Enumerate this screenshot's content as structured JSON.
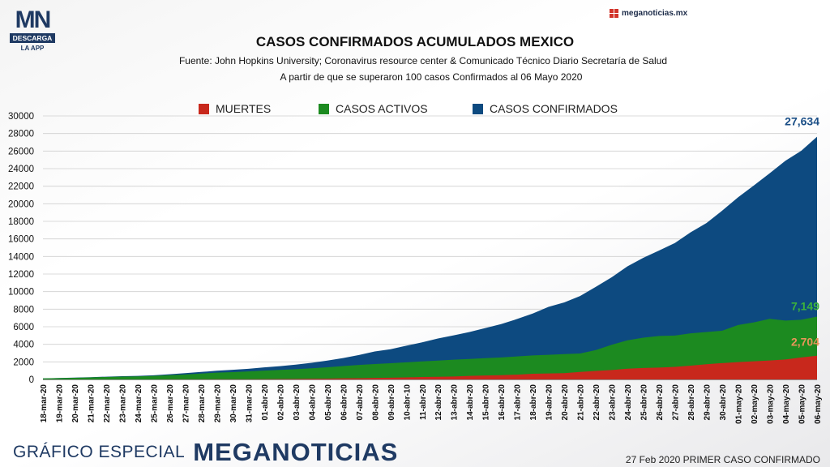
{
  "logo": {
    "mark": "MN",
    "bar": "DESCARGA",
    "sub": "LA APP"
  },
  "brand_top": "meganoticias.mx",
  "footer": {
    "special": "GRÁFICO ESPECIAL",
    "brand_a": "MEGA",
    "brand_b": "NOTICIAS",
    "note": "27 Feb 2020 PRIMER CASO CONFIRMADO"
  },
  "colors": {
    "muertes": "#c8281c",
    "activos": "#1c8a20",
    "confirmados": "#0d4a80"
  },
  "chart_data": {
    "type": "area",
    "title": "CASOS CONFIRMADOS ACUMULADOS MEXICO",
    "subtitle": "Fuente: John Hopkins University; Coronavirus resource center & Comunicado Técnico Diario Secretaría de Salud",
    "subtitle2": "A partir de que se superaron 100 casos Confirmados al 06 Mayo 2020",
    "xlabel": "",
    "ylabel": "",
    "ylim": [
      0,
      30000
    ],
    "yticks": [
      "0",
      "2000",
      "4000",
      "6000",
      "8000",
      "10000",
      "12000",
      "14000",
      "16000",
      "18000",
      "20000",
      "22000",
      "24000",
      "26000",
      "28000",
      "30000"
    ],
    "grid": true,
    "legend_position": "top",
    "categories": [
      "18-mar-20",
      "19-mar-20",
      "20-mar-20",
      "21-mar-20",
      "22-mar-20",
      "23-mar-20",
      "24-mar-20",
      "25-mar-20",
      "26-mar-20",
      "27-mar-20",
      "28-mar-20",
      "29-mar-20",
      "30-mar-20",
      "31-mar-20",
      "01-abr-20",
      "02-abr-20",
      "03-abr-20",
      "04-abr-20",
      "05-abr-20",
      "06-abr-20",
      "07-abr-20",
      "08-abr-20",
      "09-abr-20",
      "10-abr-10",
      "11-abr-20",
      "12-abr-20",
      "13-abr-20",
      "14-abr-20",
      "15-abr-20",
      "16-abr-20",
      "17-abr-20",
      "18-abr-20",
      "19-abr-20",
      "20-abr-20",
      "21-abr-20",
      "22-abr-20",
      "23-abr-20",
      "24-abr-20",
      "25-abr-20",
      "26-abr-20",
      "27-abr-20",
      "28-abr-20",
      "29-abr-20",
      "30-abr-20",
      "01-may-20",
      "02-may-20",
      "03-may-20",
      "04-may-20",
      "05-may-20",
      "06-may-20"
    ],
    "series": [
      {
        "name": "CASOS CONFIRMADOS",
        "values": [
          118,
          164,
          203,
          251,
          316,
          367,
          405,
          475,
          585,
          717,
          848,
          993,
          1094,
          1215,
          1378,
          1510,
          1688,
          1890,
          2143,
          2439,
          2785,
          3181,
          3441,
          3844,
          4219,
          4661,
          5014,
          5399,
          5847,
          6297,
          6875,
          7497,
          8261,
          8772,
          9501,
          10544,
          11633,
          12872,
          13842,
          14677,
          15529,
          16752,
          17799,
          19224,
          20739,
          22088,
          23471,
          24905,
          26025,
          27634
        ],
        "label": "27,634"
      },
      {
        "name": "CASOS ACTIVOS",
        "values": [
          110,
          150,
          185,
          225,
          280,
          320,
          350,
          400,
          480,
          570,
          670,
          770,
          830,
          910,
          1000,
          1080,
          1170,
          1270,
          1390,
          1520,
          1650,
          1750,
          1850,
          1950,
          2050,
          2150,
          2250,
          2330,
          2420,
          2500,
          2620,
          2730,
          2800,
          2880,
          2950,
          3350,
          3950,
          4450,
          4750,
          4950,
          5000,
          5250,
          5400,
          5550,
          6200,
          6500,
          6900,
          6700,
          6800,
          7149
        ],
        "label": "7,149"
      },
      {
        "name": "MUERTES",
        "values": [
          0,
          0,
          2,
          2,
          2,
          4,
          5,
          6,
          8,
          12,
          16,
          20,
          28,
          29,
          37,
          50,
          60,
          79,
          94,
          125,
          141,
          174,
          194,
          233,
          273,
          296,
          332,
          406,
          449,
          486,
          546,
          650,
          686,
          712,
          857,
          970,
          1069,
          1221,
          1305,
          1351,
          1434,
          1569,
          1732,
          1859,
          1972,
          2061,
          2154,
          2271,
          2507,
          2704
        ],
        "label": "2,704"
      }
    ]
  }
}
